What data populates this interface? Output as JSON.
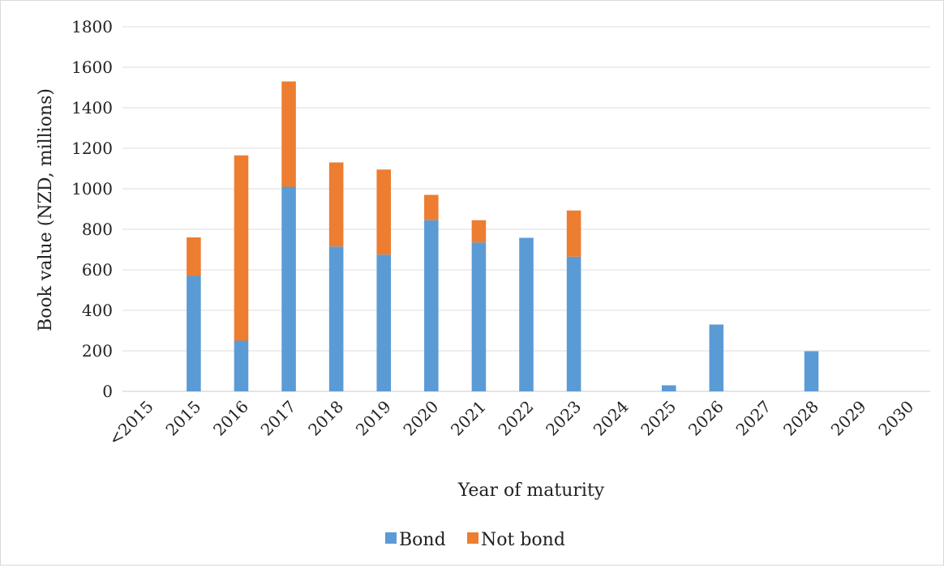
{
  "chart_data": {
    "type": "bar",
    "stacked": true,
    "title": "",
    "xlabel": "Year of maturity",
    "ylabel": "Book value (NZD, millions)",
    "ylim": [
      0,
      1800
    ],
    "yticks": [
      0,
      200,
      400,
      600,
      800,
      1000,
      1200,
      1400,
      1600,
      1800
    ],
    "grid": true,
    "legend_position": "bottom",
    "categories": [
      "<2015",
      "2015",
      "2016",
      "2017",
      "2018",
      "2019",
      "2020",
      "2021",
      "2022",
      "2023",
      "2024",
      "2025",
      "2026",
      "2027",
      "2028",
      "2029",
      "2030"
    ],
    "series": [
      {
        "name": "Bond",
        "color": "#5b9bd5",
        "values": [
          0,
          570,
          250,
          1010,
          715,
          675,
          845,
          735,
          758,
          665,
          0,
          30,
          330,
          0,
          198,
          0,
          0
        ]
      },
      {
        "name": "Not bond",
        "color": "#ed7d31",
        "values": [
          0,
          190,
          915,
          520,
          415,
          420,
          125,
          110,
          0,
          228,
          0,
          0,
          0,
          0,
          0,
          0,
          0
        ]
      }
    ]
  }
}
